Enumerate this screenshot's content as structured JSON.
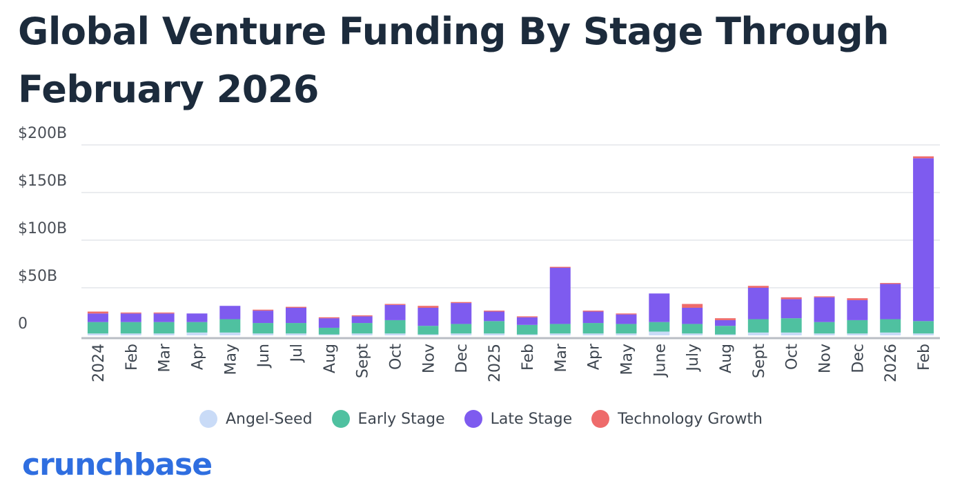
{
  "title": "Global Venture Funding By Stage Through February 2026",
  "brand": "crunchbase",
  "chart_data": {
    "type": "bar",
    "stacked": true,
    "title": "Global Venture Funding By Stage Through February 2026",
    "ylim": [
      0,
      200
    ],
    "yticks": [
      {
        "value": 0,
        "label": "0"
      },
      {
        "value": 50,
        "label": "$50B"
      },
      {
        "value": 100,
        "label": "$100B"
      },
      {
        "value": 150,
        "label": "$150B"
      },
      {
        "value": 200,
        "label": "$200B"
      }
    ],
    "categories": [
      "2024",
      "Feb",
      "Mar",
      "Apr",
      "May",
      "Jun",
      "Jul",
      "Aug",
      "Sept",
      "Oct",
      "Nov",
      "Dec",
      "2025",
      "Feb",
      "Mar",
      "Apr",
      "May",
      "June",
      "July",
      "Aug",
      "Sept",
      "Oct",
      "Nov",
      "Dec",
      "2026",
      "Feb"
    ],
    "series": [
      {
        "name": "Angel-Seed",
        "color": "#c9dbf7",
        "values": [
          2,
          2,
          2,
          3,
          3,
          2,
          2,
          1,
          2,
          2,
          1,
          2,
          2,
          1,
          2,
          2,
          2,
          4,
          2,
          1,
          3,
          3,
          2,
          2,
          3,
          2
        ]
      },
      {
        "name": "Early Stage",
        "color": "#4fc1a0",
        "values": [
          12,
          12,
          12,
          11,
          14,
          11,
          11,
          7,
          11,
          14,
          9,
          10,
          13,
          10,
          10,
          11,
          10,
          10,
          10,
          9,
          14,
          15,
          12,
          14,
          14,
          13
        ]
      },
      {
        "name": "Late Stage",
        "color": "#7e5bef",
        "values": [
          9,
          9,
          9,
          9,
          14,
          13,
          16,
          10,
          7,
          16,
          19,
          22,
          10,
          8,
          59,
          12,
          10,
          30,
          17,
          6,
          33,
          20,
          26,
          21,
          37,
          171
        ]
      },
      {
        "name": "Technology Growth",
        "color": "#ee6b6b",
        "values": [
          2,
          1,
          1,
          0,
          0,
          1,
          1,
          1,
          1,
          1,
          2,
          1,
          1,
          1,
          1,
          1,
          1,
          0,
          4,
          2,
          2,
          2,
          1,
          2,
          1,
          2
        ]
      }
    ]
  }
}
